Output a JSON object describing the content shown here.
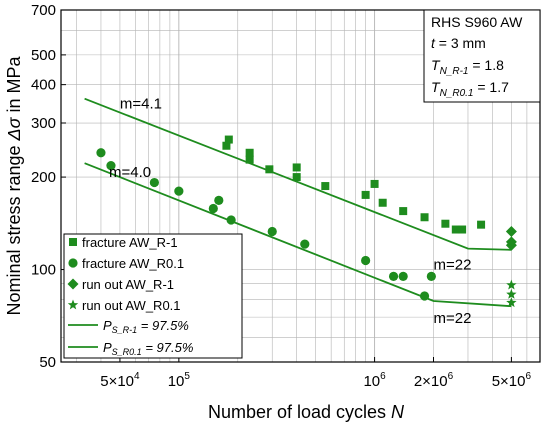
{
  "chart_data": {
    "type": "scatter",
    "x_scale": "log",
    "y_scale": "log",
    "xlim": [
      25000,
      7000000
    ],
    "ylim": [
      50,
      700
    ],
    "grid": true,
    "xlabel": "Number of load cycles",
    "xlabel_var": "N",
    "ylabel": "Nominal stress range",
    "ylabel_var": "Δσ",
    "ylabel_unit": "in MPa",
    "x_ticks": [
      {
        "value": 50000,
        "label": "5×10",
        "exp": "4"
      },
      {
        "value": 100000,
        "label": "10",
        "exp": "5"
      },
      {
        "value": 1000000,
        "label": "10",
        "exp": "6"
      },
      {
        "value": 2000000,
        "label": "2×10",
        "exp": "6"
      },
      {
        "value": 5000000,
        "label": "5×10",
        "exp": "6"
      }
    ],
    "y_ticks": [
      {
        "value": 50,
        "label": "50"
      },
      {
        "value": 100,
        "label": "100"
      },
      {
        "value": 200,
        "label": "200"
      },
      {
        "value": 300,
        "label": "300"
      },
      {
        "value": 400,
        "label": "400"
      },
      {
        "value": 500,
        "label": "500"
      },
      {
        "value": 700,
        "label": "700"
      }
    ],
    "color": "#1e8c1e",
    "series": [
      {
        "name": "fracture AW_R-1",
        "marker": "square",
        "points": [
          [
            175000,
            253
          ],
          [
            180000,
            265
          ],
          [
            230000,
            240
          ],
          [
            230000,
            228
          ],
          [
            290000,
            212
          ],
          [
            400000,
            215
          ],
          [
            400000,
            200
          ],
          [
            560000,
            187
          ],
          [
            900000,
            175
          ],
          [
            1000000,
            190
          ],
          [
            1100000,
            165
          ],
          [
            1400000,
            155
          ],
          [
            1800000,
            148
          ],
          [
            2300000,
            141
          ],
          [
            2600000,
            135
          ],
          [
            2800000,
            135
          ],
          [
            3500000,
            140
          ]
        ]
      },
      {
        "name": "fracture AW_R0.1",
        "marker": "circle",
        "points": [
          [
            40000,
            240
          ],
          [
            45000,
            218
          ],
          [
            75000,
            192
          ],
          [
            100000,
            180
          ],
          [
            150000,
            158
          ],
          [
            160000,
            168
          ],
          [
            185000,
            145
          ],
          [
            300000,
            133
          ],
          [
            440000,
            121
          ],
          [
            900000,
            107
          ],
          [
            1250000,
            95
          ],
          [
            1400000,
            95
          ],
          [
            1800000,
            82
          ],
          [
            1950000,
            95
          ]
        ]
      },
      {
        "name": "run out AW_R-1",
        "marker": "diamond",
        "points": [
          [
            5000000,
            133
          ],
          [
            5000000,
            123
          ],
          [
            5000000,
            120
          ]
        ]
      },
      {
        "name": "run out AW_R0.1",
        "marker": "star",
        "points": [
          [
            5000000,
            89
          ],
          [
            5000000,
            83
          ],
          [
            5000000,
            78
          ]
        ]
      }
    ],
    "lines": [
      {
        "name": "P",
        "sub": "S_R-1",
        "value": " = 97.5%",
        "points": [
          [
            33000,
            360
          ],
          [
            3000000,
            117
          ],
          [
            5000000,
            116
          ]
        ]
      },
      {
        "name": "P",
        "sub": "S_R0.1",
        "value": " = 97.5%",
        "points": [
          [
            33000,
            222
          ],
          [
            2000000,
            79
          ],
          [
            5000000,
            76
          ]
        ]
      }
    ],
    "annotations": [
      {
        "text": "m=4.1",
        "x": 50000,
        "y": 335
      },
      {
        "text": "m=4.0",
        "x": 44000,
        "y": 200
      },
      {
        "text": "m=22",
        "x": 2000000,
        "y": 100
      },
      {
        "text": "m=22",
        "x": 2000000,
        "y": 67
      }
    ],
    "info_box": {
      "title": "RHS S960 AW",
      "t_var": "t",
      "t_value": " = 3 mm",
      "tn1_var": "T",
      "tn1_sub": "N_R-1",
      "tn1_value": " = 1.8",
      "tn2_var": "T",
      "tn2_sub": "N_R0.1",
      "tn2_value": " = 1.7"
    }
  }
}
